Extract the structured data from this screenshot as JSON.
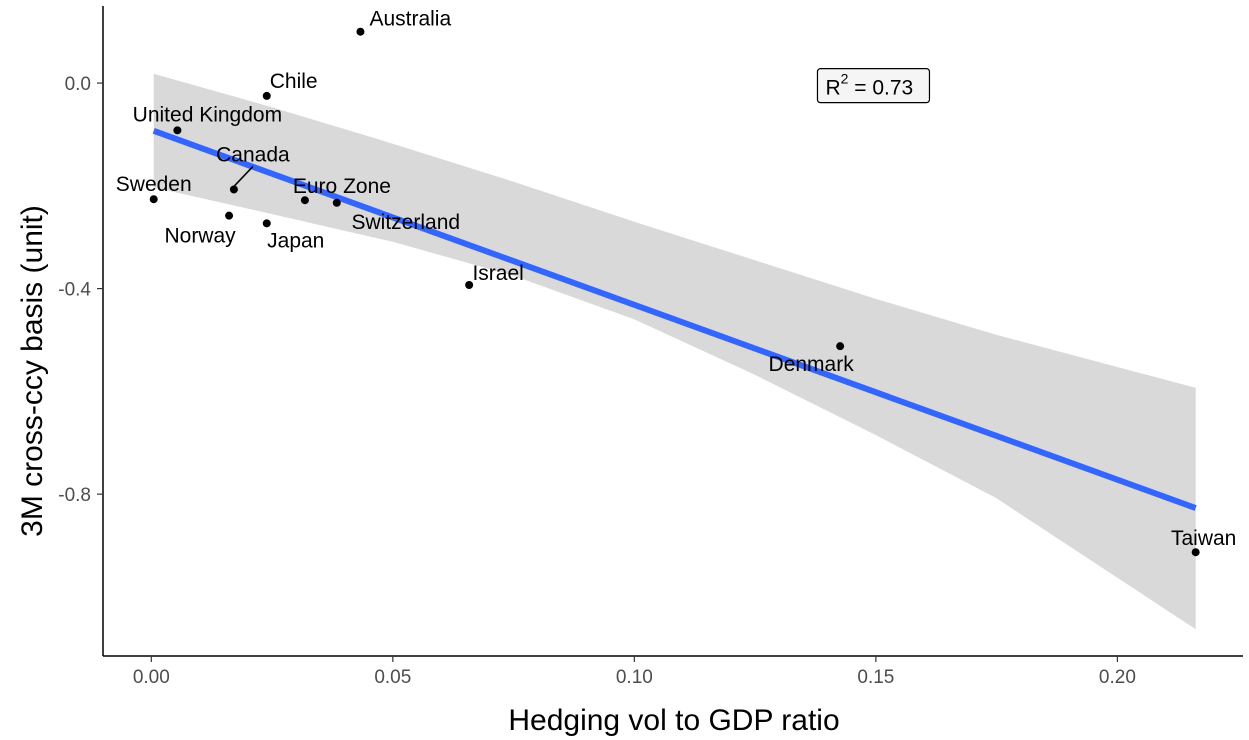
{
  "chart_data": {
    "type": "scatter",
    "xlabel": "Hedging vol to GDP ratio",
    "ylabel": "3M cross-ccy basis (unit)",
    "xlim": [
      -0.01,
      0.226
    ],
    "ylim": [
      -1.115,
      0.15
    ],
    "x_ticks": [
      0.0,
      0.05,
      0.1,
      0.15,
      0.2
    ],
    "x_tick_labels": [
      "0.00",
      "0.05",
      "0.10",
      "0.15",
      "0.20"
    ],
    "y_ticks": [
      0.0,
      -0.4,
      -0.8
    ],
    "y_tick_labels": [
      "0.0",
      "-0.4",
      "-0.8"
    ],
    "grid": false,
    "points": [
      {
        "label": "Australia",
        "x": 0.0433,
        "y": 0.1
      },
      {
        "label": "Chile",
        "x": 0.0239,
        "y": -0.025
      },
      {
        "label": "United Kingdom",
        "x": 0.0054,
        "y": -0.092
      },
      {
        "label": "Canada",
        "x": 0.0171,
        "y": -0.207
      },
      {
        "label": "Sweden",
        "x": 0.0005,
        "y": -0.226
      },
      {
        "label": "Euro Zone",
        "x": 0.0318,
        "y": -0.228
      },
      {
        "label": "Switzerland",
        "x": 0.0384,
        "y": -0.233
      },
      {
        "label": "Norway",
        "x": 0.0161,
        "y": -0.258
      },
      {
        "label": "Japan",
        "x": 0.0239,
        "y": -0.273
      },
      {
        "label": "Israel",
        "x": 0.0658,
        "y": -0.393
      },
      {
        "label": "Denmark",
        "x": 0.1426,
        "y": -0.512
      },
      {
        "label": "Taiwan",
        "x": 0.2162,
        "y": -0.913
      }
    ],
    "fit": {
      "method": "linear",
      "line": {
        "x": [
          0.0005,
          0.2162
        ],
        "y": [
          -0.093,
          -0.827
        ]
      },
      "ci_band": [
        {
          "x": 0.0005,
          "upper": 0.018,
          "lower": -0.203
        },
        {
          "x": 0.025,
          "upper": -0.047,
          "lower": -0.255
        },
        {
          "x": 0.05,
          "upper": -0.118,
          "lower": -0.309
        },
        {
          "x": 0.075,
          "upper": -0.192,
          "lower": -0.375
        },
        {
          "x": 0.1,
          "upper": -0.27,
          "lower": -0.46
        },
        {
          "x": 0.125,
          "upper": -0.345,
          "lower": -0.568
        },
        {
          "x": 0.15,
          "upper": -0.42,
          "lower": -0.685
        },
        {
          "x": 0.175,
          "upper": -0.49,
          "lower": -0.808
        },
        {
          "x": 0.2162,
          "upper": -0.593,
          "lower": -1.063
        }
      ],
      "line_color": "#3366ff",
      "band_color": "#d9d9d9"
    },
    "annotation": {
      "base": "R",
      "sup": "2",
      "rest": " = 0.73",
      "x": 0.1495,
      "y": -0.005
    }
  }
}
